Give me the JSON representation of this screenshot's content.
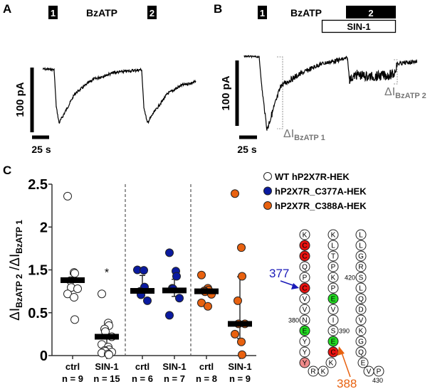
{
  "panels": {
    "a": {
      "label": "A",
      "stim1": "1",
      "agonist": "BzATP",
      "stim2": "2",
      "scale_current": "100 pA",
      "scale_time": "25 s"
    },
    "b": {
      "label": "B",
      "stim1": "1",
      "agonist": "BzATP",
      "stim2": "2",
      "drug": "SIN-1",
      "scale_current": "100 pA",
      "scale_time": "25 s",
      "delta1": {
        "main": "ΔI",
        "sub": "BzATP 1"
      },
      "delta2": {
        "main": "ΔI",
        "sub": "BzATP 2"
      }
    },
    "c": {
      "label": "C"
    }
  },
  "chart_data": {
    "type": "scatter",
    "title": "",
    "ylabel": {
      "num_main": "ΔI",
      "num_sub": "BzATP 2",
      "sep": " /",
      "den_main": "ΔI",
      "den_sub": "BzATP 1"
    },
    "yticks": [
      "0",
      "0.5",
      "1.5",
      "2",
      "2.5"
    ],
    "tick_values": [
      0,
      0.5,
      1.5,
      2,
      2.5
    ],
    "ylim": [
      0,
      2.5
    ],
    "grid": false,
    "legend_position": "top-right",
    "legend": [
      {
        "label": "WT hP2X7R-HEK",
        "fill": "#ffffff"
      },
      {
        "label": "hP2X7R_C377A-HEK",
        "fill": "#0a1aa0"
      },
      {
        "label": "hP2X7R_C388A-HEK",
        "fill": "#e8610f"
      }
    ],
    "groups": [
      {
        "cat": "ctrl",
        "n": "n = 9",
        "series": 0,
        "mean": 1.26,
        "err_hi": 1.4,
        "err_lo": 1.1,
        "values": [
          2.36,
          1.44,
          1.42,
          1.25,
          1.09,
          1.06,
          0.94,
          0.86,
          0.42
        ]
      },
      {
        "cat": "SIN-1",
        "n": "n = 15",
        "series": 0,
        "mean": 0.22,
        "err_hi": 0.38,
        "err_lo": 0.02,
        "annotation": "*",
        "values": [
          0.94,
          0.38,
          0.35,
          0.31,
          0.28,
          0.22,
          0.13,
          0.1,
          0.07,
          0.06,
          0.05,
          0.04,
          0.03,
          0.02,
          0.01
        ]
      },
      {
        "cat": "crtl",
        "n": "n = 6",
        "series": 1,
        "mean": 1.01,
        "err_hi": 1.37,
        "err_lo": 0.9,
        "values": [
          1.5,
          1.49,
          1.1,
          1.0,
          0.92,
          0.78
        ]
      },
      {
        "cat": "SIN-1",
        "n": "n = 7",
        "series": 1,
        "mean": 1.02,
        "err_hi": 1.28,
        "err_lo": 0.88,
        "values": [
          1.7,
          1.47,
          1.35,
          1.07,
          1.06,
          0.84,
          0.47
        ]
      },
      {
        "cat": "crtl",
        "n": "n = 8",
        "series": 2,
        "mean": 1.0,
        "err_hi": 1.05,
        "err_lo": 0.95,
        "values": [
          1.38,
          1.07,
          1.03,
          1.01,
          0.99,
          0.93,
          0.73,
          0.65
        ]
      },
      {
        "cat": "SIN-1",
        "n": "n = 9",
        "series": 2,
        "mean": 0.37,
        "err_hi": 1.34,
        "err_lo": 0.2,
        "values": [
          2.39,
          1.76,
          1.35,
          0.78,
          0.37,
          0.37,
          0.25,
          0.16,
          0.01
        ]
      }
    ]
  },
  "sequence": {
    "col1": [
      "K",
      "C",
      "C",
      "Q",
      "P",
      "C",
      "V",
      "V",
      "N",
      "E",
      "Y",
      "Y",
      "Y"
    ],
    "col1_colors": [
      "w",
      "r",
      "r",
      "w",
      "w",
      "r",
      "w",
      "w",
      "w",
      "g",
      "w",
      "w",
      "p"
    ],
    "turn1": [
      "R",
      "K"
    ],
    "col2": [
      "K",
      "L",
      "T",
      "P",
      "K",
      "P",
      "E",
      "V",
      "I",
      "S",
      "E",
      "C",
      "K"
    ],
    "col2_colors": [
      "w",
      "w",
      "w",
      "w",
      "w",
      "w",
      "g",
      "w",
      "w",
      "w",
      "g",
      "r",
      "w"
    ],
    "col3": [
      "L",
      "L",
      "G",
      "R",
      "S",
      "L",
      "Q",
      "D",
      "V",
      "K",
      "G",
      "Q",
      "E"
    ],
    "tail": [
      "V",
      "P"
    ],
    "numbers": {
      "n380": "380",
      "n390": "390",
      "n420": "420",
      "n430": "430"
    },
    "marker377": "377",
    "marker388": "388",
    "colors": {
      "w": "#ffffff",
      "r": "#e8120f",
      "g": "#22dd22",
      "p": "#f08a8a",
      "blue": "#1a1ab8",
      "orange": "#e8610f"
    }
  }
}
